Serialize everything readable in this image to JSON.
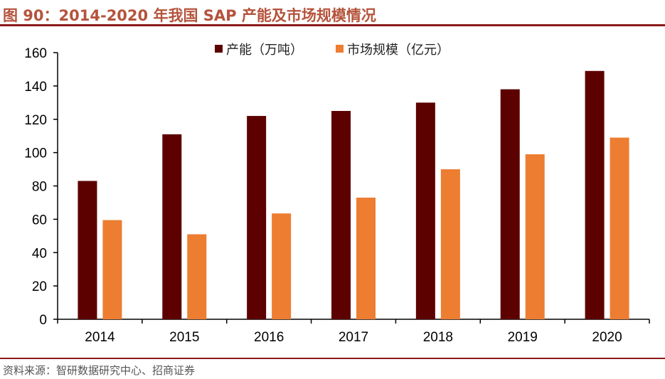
{
  "title": "图 90：2014-2020 年我国 SAP 产能及市场规模情况",
  "source": "资料来源：智研数据研究中心、招商证券",
  "chart_data": {
    "type": "bar",
    "categories": [
      "2014",
      "2015",
      "2016",
      "2017",
      "2018",
      "2019",
      "2020"
    ],
    "series": [
      {
        "name": "产能（万吨）",
        "color": "#5c0000",
        "values": [
          83,
          111,
          122,
          125,
          130,
          138,
          149
        ]
      },
      {
        "name": "市场规模（亿元）",
        "color": "#ed7d31",
        "values": [
          59.5,
          51,
          63.5,
          73,
          90,
          99,
          109
        ]
      }
    ],
    "ylim": [
      0,
      160
    ],
    "yticks": [
      0,
      20,
      40,
      60,
      80,
      100,
      120,
      140,
      160
    ],
    "legend": "top",
    "grid": false
  }
}
